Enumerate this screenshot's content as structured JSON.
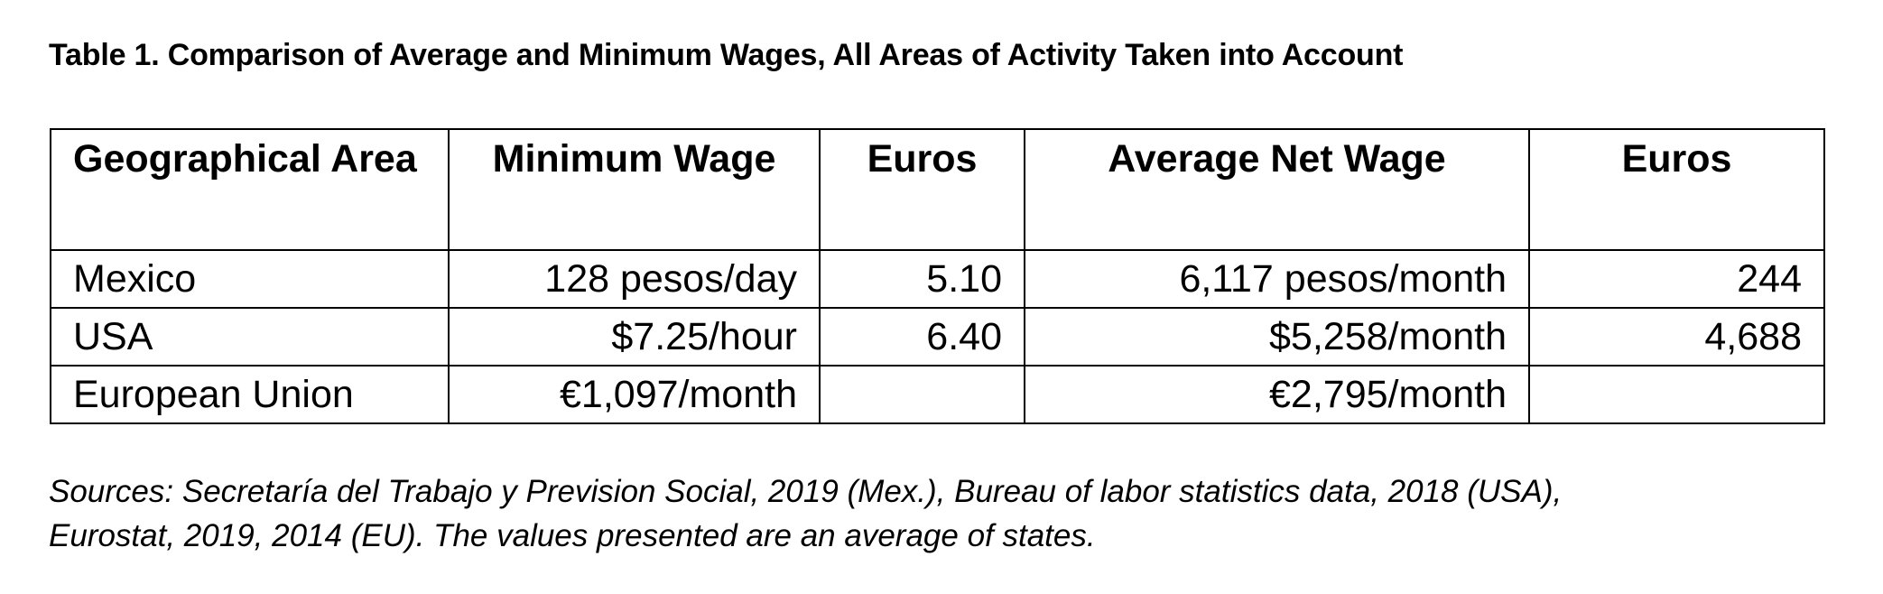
{
  "title": "Table 1.  Comparison of Average and Minimum Wages, All Areas of Activity Taken into Account",
  "table": {
    "headers": [
      "Geographical Area",
      "Minimum Wage",
      "Euros",
      "Average Net Wage",
      "Euros"
    ],
    "rows": [
      [
        "Mexico",
        "128 pesos/day",
        "5.10",
        "6,117 pesos/month",
        "244"
      ],
      [
        "USA",
        "$7.25/hour",
        "6.40",
        "$5,258/month",
        "4,688"
      ],
      [
        "European Union",
        "€1,097/month",
        "",
        "€2,795/month",
        ""
      ]
    ]
  },
  "sources": {
    "line1": "Sources: Secretaría del Trabajo y Prevision Social, 2019 (Mex.), Bureau of labor statistics data, 2018 (USA),",
    "line2": "Eurostat, 2019, 2014 (EU). The values presented are an average of states."
  }
}
